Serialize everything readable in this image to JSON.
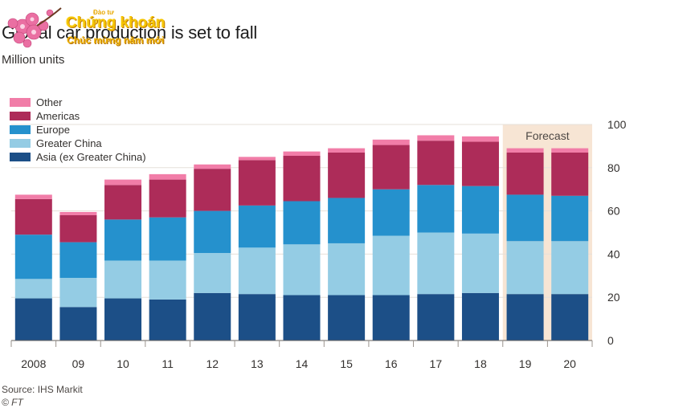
{
  "header": {
    "title": "Global car production is set to fall",
    "subtitle": "Million units"
  },
  "watermark": {
    "tiny": "Đào tư",
    "big": "Chứng khoán",
    "small": "Chúc mừng năm mới"
  },
  "footer": {
    "source": "Source: IHS Markit",
    "credit": "© FT"
  },
  "chart_data": {
    "type": "bar",
    "stacked": true,
    "title": "Global car production is set to fall",
    "ylabel": "Million units",
    "xlabel": "",
    "ylim": [
      0,
      100
    ],
    "yticks": [
      0,
      20,
      40,
      60,
      80,
      100
    ],
    "y_axis_side": "right",
    "gridlines": true,
    "legend_position": "top-left",
    "categories": [
      "2008",
      "09",
      "10",
      "11",
      "12",
      "13",
      "14",
      "15",
      "16",
      "17",
      "18",
      "19",
      "20"
    ],
    "forecast": {
      "label": "Forecast",
      "from": "19",
      "to": "20",
      "color": "#f7e5d4"
    },
    "series": [
      {
        "name": "Asia (ex Greater China)",
        "color": "#1c4f87",
        "values": [
          19.5,
          15.5,
          19.5,
          19,
          22,
          21.5,
          21,
          21,
          21,
          21.5,
          22,
          21.5,
          21.5
        ]
      },
      {
        "name": "Greater China",
        "color": "#94cce4",
        "values": [
          9,
          13.5,
          17.5,
          18,
          18.5,
          21.5,
          23.5,
          24,
          27.5,
          28.5,
          27.5,
          24.5,
          24.5
        ]
      },
      {
        "name": "Europe",
        "color": "#2591cd",
        "values": [
          20.5,
          16.5,
          19,
          20,
          19.5,
          19.5,
          20,
          21,
          21.5,
          22,
          22,
          21.5,
          21
        ]
      },
      {
        "name": "Americas",
        "color": "#ad2c59",
        "values": [
          16.5,
          12.5,
          16,
          17.5,
          19.5,
          21,
          21,
          21,
          20.5,
          20.5,
          20.5,
          19.5,
          20
        ]
      },
      {
        "name": "Other",
        "color": "#f17da8",
        "values": [
          2,
          1.5,
          2.5,
          2.5,
          2,
          1.5,
          2,
          2,
          2.5,
          2.5,
          2.5,
          2,
          2
        ]
      }
    ]
  }
}
